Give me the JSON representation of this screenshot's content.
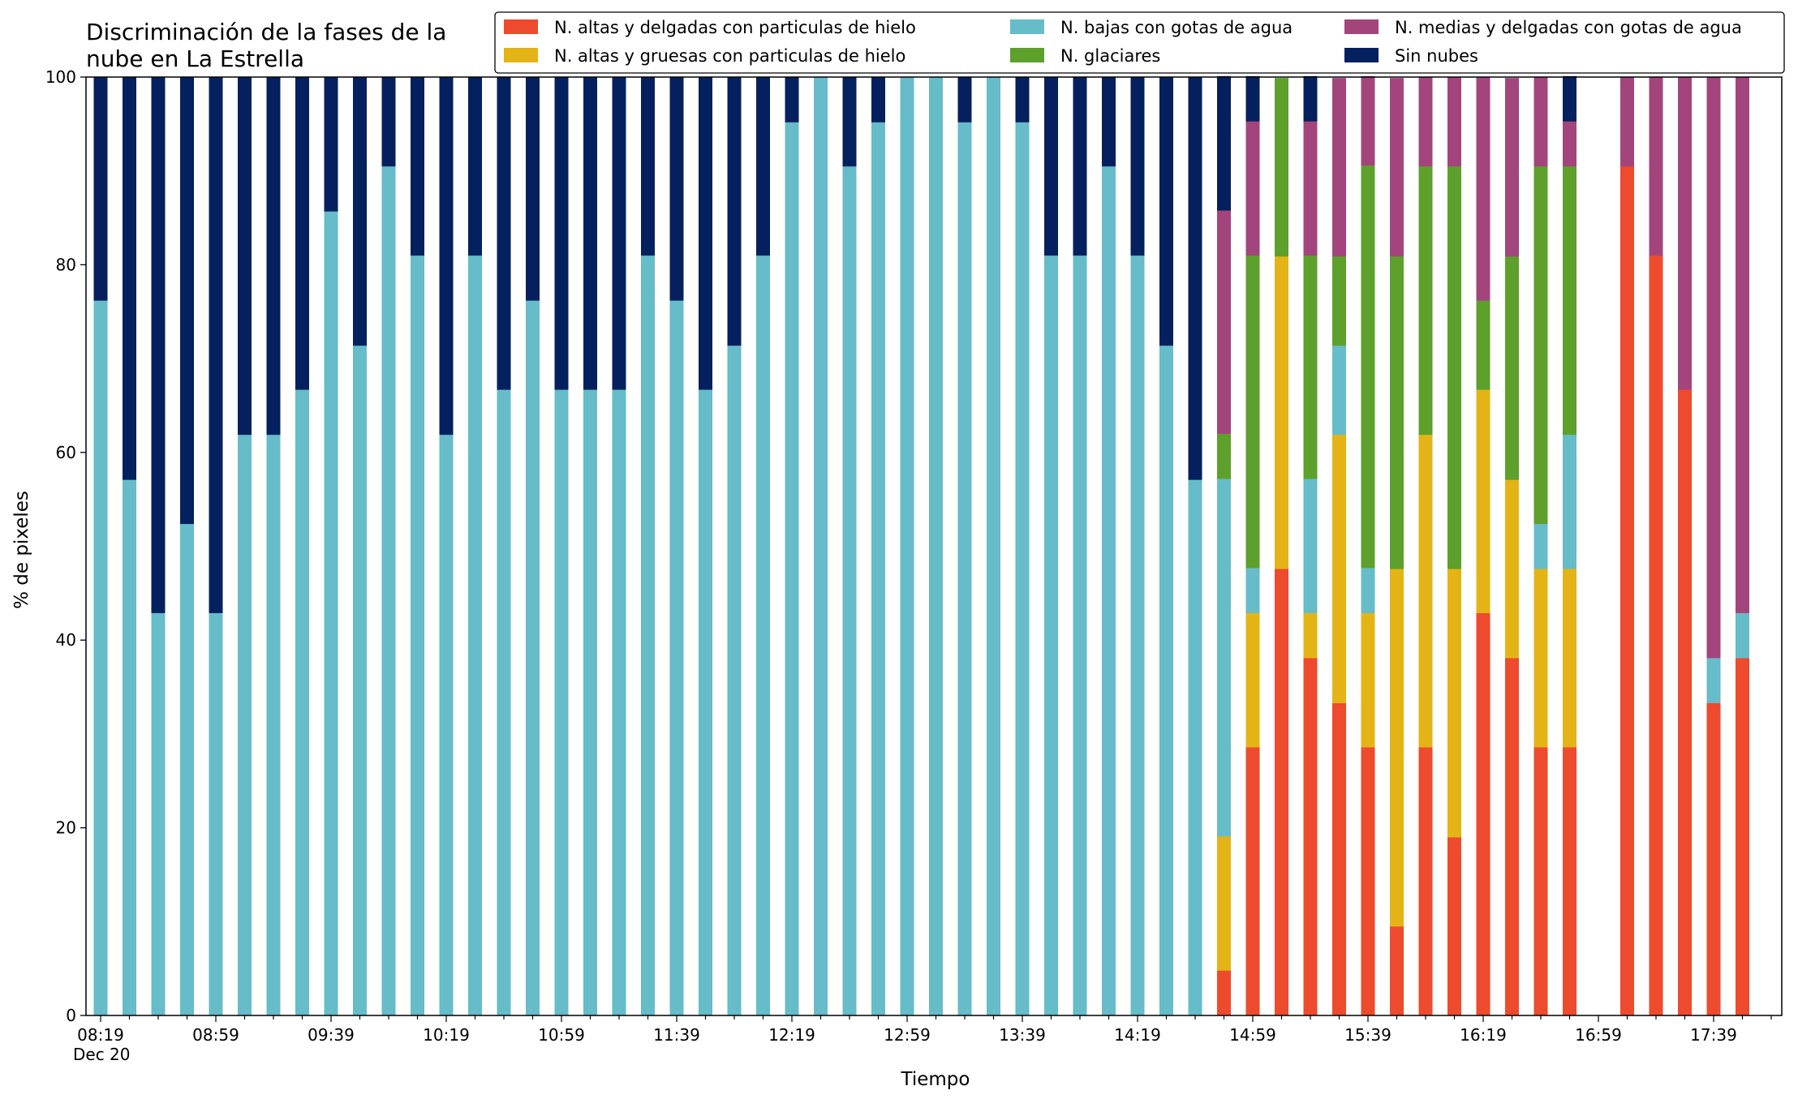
{
  "chart_data": {
    "type": "bar",
    "stacked": true,
    "title_lines": [
      "Discriminación de la fases de la",
      "nube en La Estrella"
    ],
    "xlabel": "Tiempo",
    "ylabel": "% de pixeles",
    "ylim": [
      0,
      100
    ],
    "yticks": [
      0,
      20,
      40,
      60,
      80,
      100
    ],
    "xticks": [
      {
        "label": "08:19",
        "index": 0,
        "sublabel": "Dec 20"
      },
      {
        "label": "08:59",
        "index": 4
      },
      {
        "label": "09:39",
        "index": 8
      },
      {
        "label": "10:19",
        "index": 12
      },
      {
        "label": "10:59",
        "index": 16
      },
      {
        "label": "11:39",
        "index": 20
      },
      {
        "label": "12:19",
        "index": 24
      },
      {
        "label": "12:59",
        "index": 28
      },
      {
        "label": "13:39",
        "index": 32
      },
      {
        "label": "14:19",
        "index": 36
      },
      {
        "label": "14:59",
        "index": 40
      },
      {
        "label": "15:39",
        "index": 44
      },
      {
        "label": "16:19",
        "index": 48
      },
      {
        "label": "16:59",
        "index": 52
      },
      {
        "label": "17:39",
        "index": 56
      }
    ],
    "slot_count": 59,
    "legend_position": "top-right",
    "series": [
      {
        "name": "N. altas y delgadas con particulas de hielo",
        "color": "#ee4a2d",
        "values": [
          0,
          0,
          0,
          0,
          0,
          0,
          0,
          0,
          0,
          0,
          0,
          0,
          0,
          0,
          0,
          0,
          0,
          0,
          0,
          0,
          0,
          0,
          0,
          0,
          0,
          0,
          0,
          0,
          0,
          0,
          0,
          0,
          0,
          0,
          0,
          0,
          0,
          0,
          0,
          4.8,
          28.6,
          47.6,
          38.1,
          33.3,
          28.6,
          9.5,
          28.6,
          19.0,
          42.9,
          38.1,
          28.6,
          28.6,
          0,
          90.5,
          81.0,
          66.7,
          33.3,
          38.1
        ]
      },
      {
        "name": "N. altas y gruesas con particulas de hielo",
        "color": "#e4b416",
        "values": [
          0,
          0,
          0,
          0,
          0,
          0,
          0,
          0,
          0,
          0,
          0,
          0,
          0,
          0,
          0,
          0,
          0,
          0,
          0,
          0,
          0,
          0,
          0,
          0,
          0,
          0,
          0,
          0,
          0,
          0,
          0,
          0,
          0,
          0,
          0,
          0,
          0,
          0,
          0,
          14.3,
          14.3,
          33.3,
          4.8,
          28.6,
          14.3,
          38.1,
          33.3,
          28.6,
          23.8,
          19.0,
          19.0,
          19.0,
          0,
          0,
          0,
          0,
          0,
          0
        ]
      },
      {
        "name": "N. bajas con gotas de agua",
        "color": "#66bcc8",
        "values": [
          76.2,
          57.1,
          42.9,
          52.4,
          42.9,
          61.9,
          61.9,
          66.7,
          85.7,
          71.4,
          90.5,
          81.0,
          61.9,
          81.0,
          66.7,
          76.2,
          66.7,
          66.7,
          66.7,
          81.0,
          76.2,
          66.7,
          71.4,
          81.0,
          95.2,
          100,
          90.5,
          95.2,
          100,
          100,
          95.2,
          100,
          95.2,
          81.0,
          81.0,
          90.5,
          81.0,
          71.4,
          57.1,
          38.1,
          4.8,
          0,
          14.3,
          9.5,
          4.8,
          0,
          0,
          0,
          0,
          0,
          4.8,
          14.3,
          0,
          0,
          0,
          0,
          4.8,
          4.8
        ]
      },
      {
        "name": "N. glaciares",
        "color": "#5da02c",
        "values": [
          0,
          0,
          0,
          0,
          0,
          0,
          0,
          0,
          0,
          0,
          0,
          0,
          0,
          0,
          0,
          0,
          0,
          0,
          0,
          0,
          0,
          0,
          0,
          0,
          0,
          0,
          0,
          0,
          0,
          0,
          0,
          0,
          0,
          0,
          0,
          0,
          0,
          0,
          0,
          4.8,
          33.3,
          19.0,
          23.8,
          9.5,
          42.9,
          33.3,
          28.6,
          42.9,
          9.5,
          23.8,
          38.1,
          28.6,
          0,
          0,
          0,
          0,
          0,
          0
        ]
      },
      {
        "name": "N. medias y delgadas con gotas de agua",
        "color": "#a3457c",
        "values": [
          0,
          0,
          0,
          0,
          0,
          0,
          0,
          0,
          0,
          0,
          0,
          0,
          0,
          0,
          0,
          0,
          0,
          0,
          0,
          0,
          0,
          0,
          0,
          0,
          0,
          0,
          0,
          0,
          0,
          0,
          0,
          0,
          0,
          0,
          0,
          0,
          0,
          0,
          0,
          23.8,
          14.3,
          0,
          14.3,
          19.0,
          9.5,
          19.0,
          9.5,
          9.5,
          23.8,
          19.0,
          9.5,
          4.8,
          0,
          9.5,
          19.0,
          33.3,
          61.9,
          57.1
        ]
      },
      {
        "name": "Sin nubes",
        "color": "#04205e",
        "values": [
          23.8,
          42.9,
          57.1,
          47.6,
          57.1,
          38.1,
          38.1,
          33.3,
          14.3,
          28.6,
          9.5,
          19.0,
          38.1,
          19.0,
          33.3,
          23.8,
          33.3,
          33.3,
          33.3,
          19.0,
          23.8,
          33.3,
          28.6,
          19.0,
          4.8,
          0,
          9.5,
          4.8,
          0,
          0,
          4.8,
          0,
          4.8,
          19.0,
          19.0,
          9.5,
          19.0,
          28.6,
          42.9,
          14.3,
          4.8,
          0,
          4.8,
          0,
          0,
          0,
          0,
          0,
          0,
          0,
          0,
          4.8,
          0,
          0,
          0,
          0,
          0,
          0
        ]
      }
    ]
  },
  "legend_order": [
    "N. altas y delgadas con particulas de hielo",
    "N. bajas con gotas de agua",
    "N. medias y delgadas con gotas de agua",
    "N. altas y gruesas con particulas de hielo",
    "N. glaciares",
    "Sin nubes"
  ]
}
